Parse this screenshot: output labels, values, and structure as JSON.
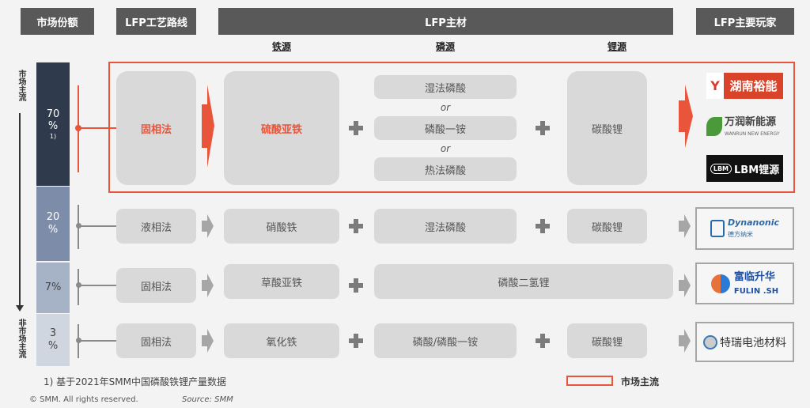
{
  "headers": {
    "market_share": "市场份额",
    "process": "LFP工艺路线",
    "materials": "LFP主材",
    "players": "LFP主要玩家"
  },
  "subheaders": {
    "iron": "铁源",
    "phosphorus": "磷源",
    "lithium": "锂源"
  },
  "side": {
    "mainstream": "市场主流",
    "non_mainstream": "非市场主流"
  },
  "rows": [
    {
      "share": "70",
      "share_unit": "%",
      "share_note": "1)",
      "share_value_percent": 70,
      "process": "固相法",
      "iron": "硫酸亚铁",
      "phosphorus": [
        "湿法磷酸",
        "磷酸一铵",
        "热法磷酸"
      ],
      "or": "or",
      "lithium": "碳酸锂",
      "mainstream": true,
      "players": [
        "湖南裕能",
        "万润新能源",
        "LBM锂源"
      ],
      "players_sub": "WANRUN NEW ENERGY",
      "players_mark": "LBM"
    },
    {
      "share": "20",
      "share_unit": "%",
      "share_value_percent": 20,
      "process": "液相法",
      "iron": "硝酸铁",
      "phosphorus": "湿法磷酸",
      "lithium": "碳酸锂",
      "players": [
        "Dynanonic",
        "德方纳米"
      ]
    },
    {
      "share": "7%",
      "share_value_percent": 7,
      "process": "固相法",
      "iron": "草酸亚铁",
      "phosphorus_lithium": "磷酸二氢锂",
      "players": [
        "富临升华",
        "FULIN .SH"
      ]
    },
    {
      "share": "3",
      "share_unit": "%",
      "share_value_percent": 3,
      "process": "固相法",
      "iron": "氧化铁",
      "phosphorus": "磷酸/磷酸一铵",
      "lithium": "碳酸锂",
      "players": [
        "特瑞电池材料"
      ]
    }
  ],
  "footnote": "1) 基于2021年SMM中国磷酸铁锂产量数据",
  "copyright": "© SMM. All rights reserved.",
  "source": "Source: SMM",
  "legend": {
    "label": "市场主流"
  },
  "colors": {
    "accent": "#e8553a",
    "header": "#595959",
    "bar70": "#2f3b4d",
    "bar20": "#7d8ca8",
    "bar7": "#a6b2c6",
    "bar3": "#d0d6e0",
    "card": "#d9d9da"
  }
}
